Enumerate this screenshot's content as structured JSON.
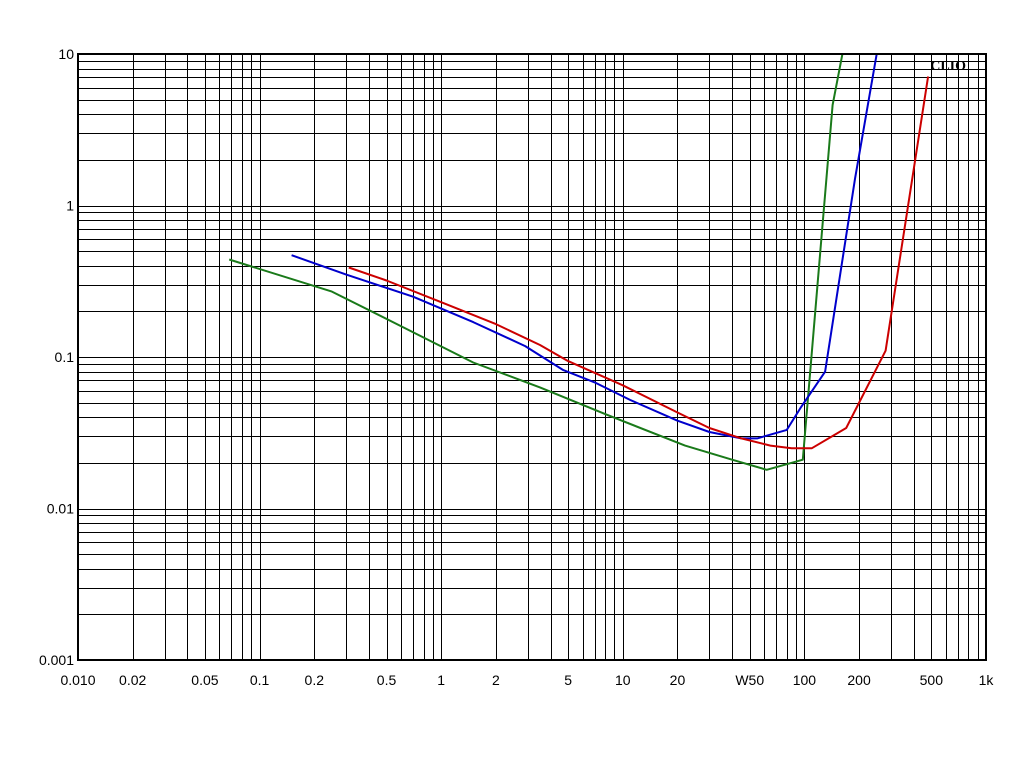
{
  "brand": "CLIO",
  "chart_data": {
    "type": "line",
    "title": "",
    "xlabel": "",
    "ylabel": "",
    "x_scale": "log",
    "y_scale": "log",
    "xlim": [
      0.01,
      1000
    ],
    "ylim": [
      0.001,
      10
    ],
    "grid": true,
    "x_tick_labels": [
      {
        "value": 0.01,
        "label": "0.010"
      },
      {
        "value": 0.02,
        "label": "0.02"
      },
      {
        "value": 0.05,
        "label": "0.05"
      },
      {
        "value": 0.1,
        "label": "0.1"
      },
      {
        "value": 0.2,
        "label": "0.2"
      },
      {
        "value": 0.5,
        "label": "0.5"
      },
      {
        "value": 1,
        "label": "1"
      },
      {
        "value": 2,
        "label": "2"
      },
      {
        "value": 5,
        "label": "5"
      },
      {
        "value": 10,
        "label": "10"
      },
      {
        "value": 20,
        "label": "20"
      },
      {
        "value": 50,
        "label": "W50"
      },
      {
        "value": 100,
        "label": "100"
      },
      {
        "value": 200,
        "label": "200"
      },
      {
        "value": 500,
        "label": "500"
      },
      {
        "value": 1000,
        "label": "1k"
      }
    ],
    "y_tick_labels": [
      {
        "value": 10,
        "label": "10"
      },
      {
        "value": 1,
        "label": "1"
      },
      {
        "value": 0.1,
        "label": "0.1"
      },
      {
        "value": 0.01,
        "label": "0.01"
      },
      {
        "value": 0.001,
        "label": "0.001"
      }
    ],
    "series": [
      {
        "color": "#1a7a1a",
        "x": [
          0.068,
          0.25,
          0.6,
          1.5,
          3.5,
          8,
          22,
          40,
          62,
          98,
          143,
          162
        ],
        "y": [
          0.44,
          0.27,
          0.16,
          0.092,
          0.063,
          0.042,
          0.026,
          0.021,
          0.018,
          0.021,
          4.6,
          10
        ]
      },
      {
        "color": "#0000cc",
        "x": [
          0.15,
          0.3,
          0.7,
          1.5,
          2.9,
          4.7,
          7,
          11,
          20,
          30,
          45,
          55,
          80,
          95,
          130,
          190,
          250
        ],
        "y": [
          0.47,
          0.35,
          0.25,
          0.17,
          0.118,
          0.082,
          0.068,
          0.052,
          0.038,
          0.032,
          0.029,
          0.029,
          0.033,
          0.046,
          0.08,
          1.5,
          10
        ]
      },
      {
        "color": "#cc0000",
        "x": [
          0.31,
          0.5,
          1,
          2,
          3.5,
          5,
          10,
          20,
          30,
          45,
          65,
          85,
          110,
          170,
          280,
          480
        ],
        "y": [
          0.39,
          0.32,
          0.23,
          0.165,
          0.12,
          0.094,
          0.065,
          0.043,
          0.034,
          0.029,
          0.026,
          0.025,
          0.025,
          0.034,
          0.11,
          7.1
        ]
      }
    ]
  }
}
